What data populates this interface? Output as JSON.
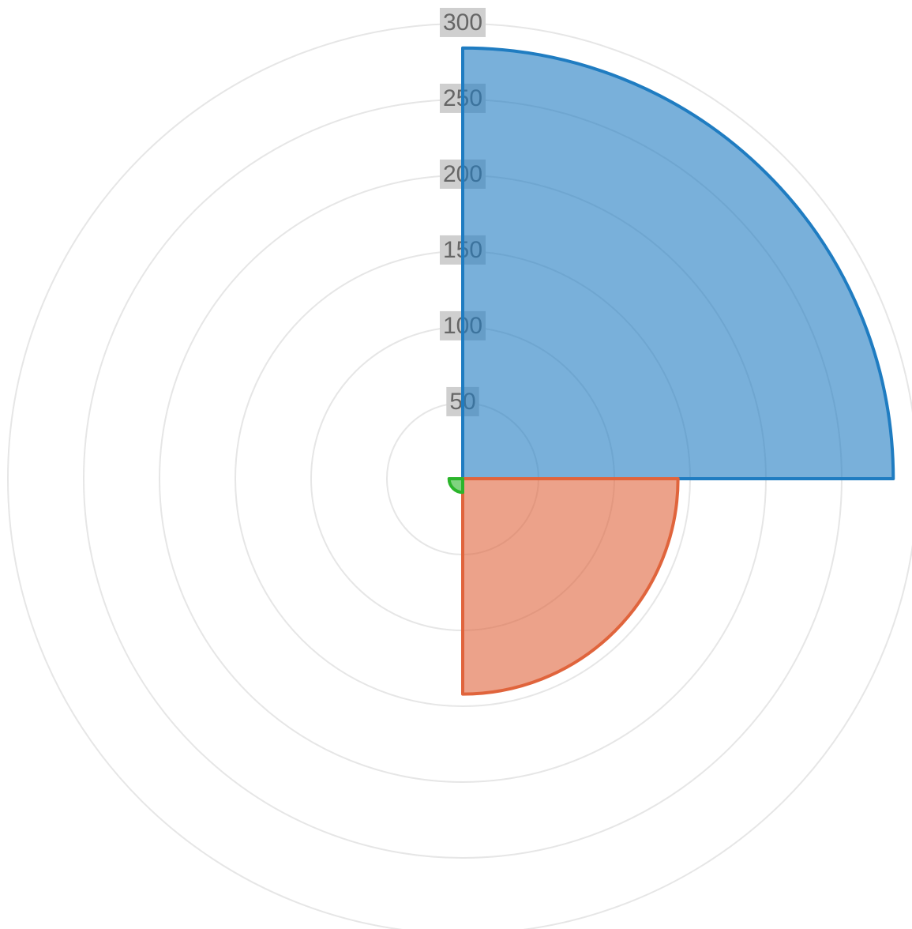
{
  "chart_data": {
    "type": "polarArea",
    "values": [
      284,
      142,
      9,
      0
    ],
    "colors": [
      "#1f7cc1",
      "#e0643c",
      "#2bb52b"
    ],
    "rlim": [
      0,
      300
    ],
    "rticks": [
      50,
      100,
      150,
      200,
      250,
      300
    ],
    "grid": true
  }
}
